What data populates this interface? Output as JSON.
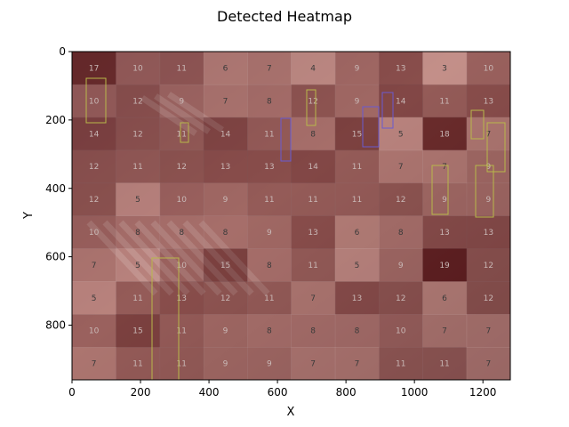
{
  "chart_data": {
    "type": "heatmap",
    "title": "Detected Heatmap",
    "xlabel": "X",
    "ylabel": "Y",
    "xlim": [
      0,
      1280
    ],
    "ylim": [
      960,
      0
    ],
    "x_ticks": [
      0,
      200,
      400,
      600,
      800,
      1000,
      1200
    ],
    "y_ticks": [
      0,
      200,
      400,
      600,
      800
    ],
    "grid": false,
    "cols": 10,
    "rows": 10,
    "values": [
      [
        17,
        10,
        11,
        6,
        7,
        4,
        9,
        13,
        3,
        10
      ],
      [
        10,
        12,
        9,
        7,
        8,
        12,
        9,
        14,
        11,
        13
      ],
      [
        14,
        12,
        11,
        14,
        11,
        8,
        15,
        5,
        18,
        7
      ],
      [
        12,
        11,
        12,
        13,
        13,
        14,
        11,
        7,
        7,
        9
      ],
      [
        12,
        5,
        10,
        9,
        11,
        11,
        11,
        12,
        9,
        9
      ],
      [
        10,
        8,
        8,
        8,
        9,
        13,
        6,
        8,
        13,
        13
      ],
      [
        7,
        5,
        10,
        15,
        8,
        11,
        5,
        9,
        19,
        12
      ],
      [
        5,
        11,
        13,
        12,
        11,
        7,
        13,
        12,
        6,
        12
      ],
      [
        10,
        15,
        11,
        9,
        8,
        8,
        8,
        10,
        7,
        7
      ],
      [
        7,
        11,
        11,
        9,
        9,
        7,
        7,
        11,
        11,
        7
      ]
    ],
    "colormap": {
      "low": "#e6c9c4",
      "high": "#3a0a12"
    },
    "background_color": "#8a3a34"
  }
}
